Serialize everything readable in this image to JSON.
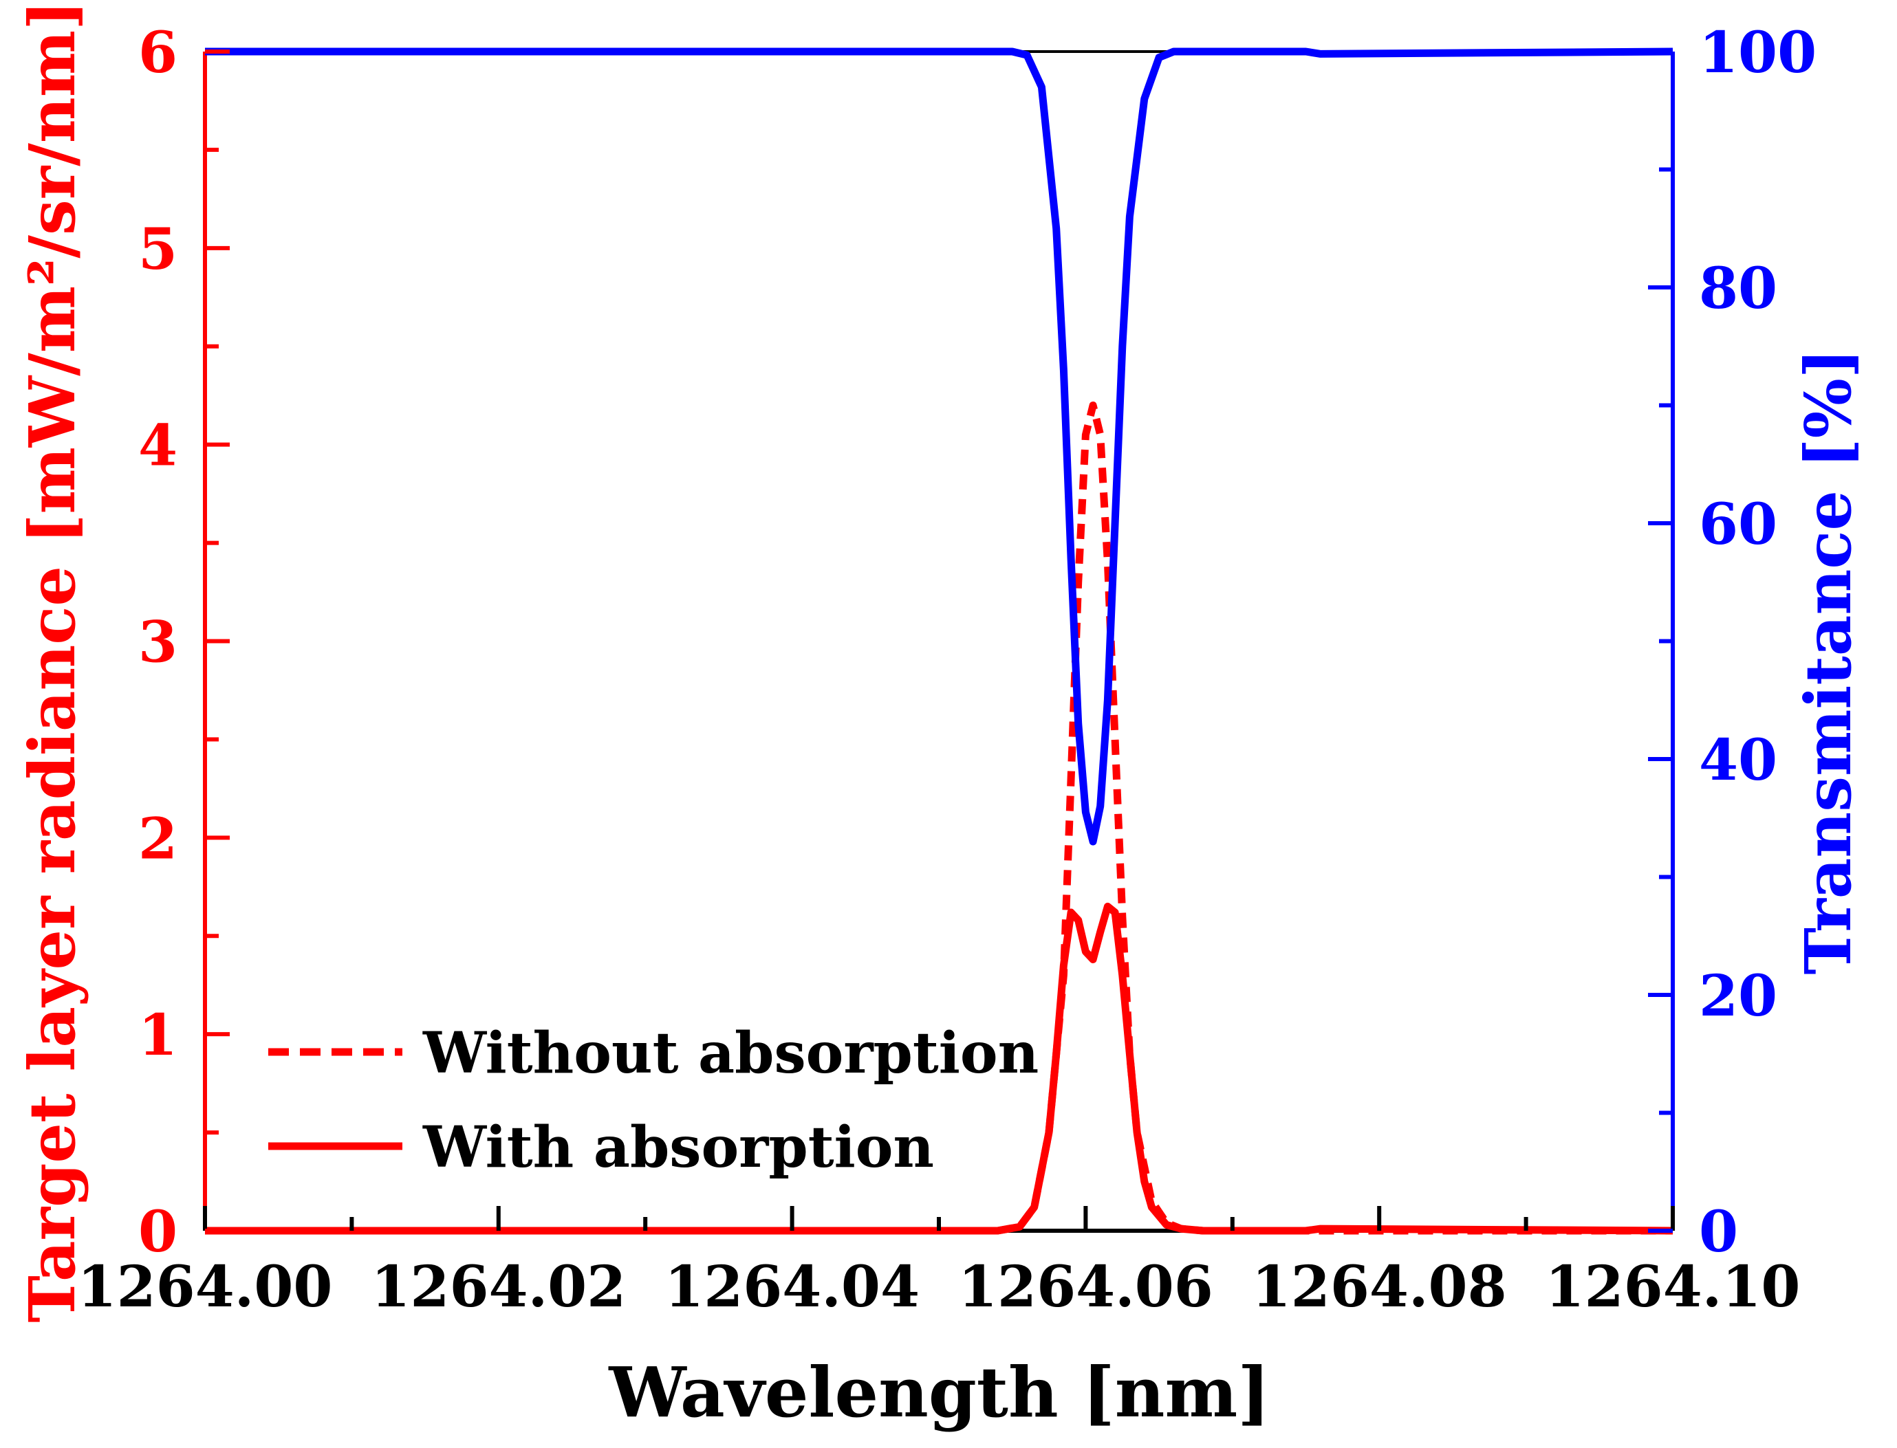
{
  "chart_data": {
    "type": "line",
    "title": "",
    "xlabel": "Wavelength [nm]",
    "ylabel_left": "Target layer radiance [mW/m²/sr/nm]",
    "ylabel_right": "Transmitance [%]",
    "xlim": [
      1264.0,
      1264.1
    ],
    "ylim_left": [
      0,
      6
    ],
    "ylim_right": [
      0,
      100
    ],
    "x_ticks": [
      "1264.00",
      "1264.02",
      "1264.04",
      "1264.06",
      "1264.08",
      "1264.10"
    ],
    "y_left_ticks": [
      "0",
      "1",
      "2",
      "3",
      "4",
      "5",
      "6"
    ],
    "y_right_ticks": [
      "0",
      "20",
      "40",
      "60",
      "80",
      "100"
    ],
    "grid": false,
    "legend_position": "bottom-left",
    "colors": {
      "left_axis": "#ff0000",
      "right_axis": "#0000ff",
      "x_axis": "#000000"
    },
    "series": [
      {
        "name": "Without absorption",
        "axis": "left",
        "style": "dashed",
        "color": "#ff0000",
        "x": [
          1264.0,
          1264.054,
          1264.0555,
          1264.0565,
          1264.0575,
          1264.0585,
          1264.059,
          1264.0595,
          1264.06,
          1264.0605,
          1264.061,
          1264.0615,
          1264.062,
          1264.0625,
          1264.063,
          1264.0635,
          1264.0645,
          1264.0655,
          1264.0665,
          1264.068,
          1264.1
        ],
        "y": [
          0,
          0,
          0.02,
          0.12,
          0.5,
          1.3,
          2.3,
          3.3,
          4.05,
          4.2,
          4.05,
          3.4,
          2.5,
          1.6,
          0.9,
          0.5,
          0.15,
          0.04,
          0.01,
          0,
          0
        ]
      },
      {
        "name": "With absorption",
        "axis": "left",
        "style": "solid",
        "color": "#ff0000",
        "x": [
          1264.0,
          1264.054,
          1264.0555,
          1264.0565,
          1264.0575,
          1264.058,
          1264.0585,
          1264.059,
          1264.0595,
          1264.06,
          1264.0605,
          1264.061,
          1264.0615,
          1264.062,
          1264.0625,
          1264.063,
          1264.0635,
          1264.064,
          1264.0645,
          1264.0655,
          1264.0665,
          1264.068,
          1264.075,
          1264.076,
          1264.1
        ],
        "y": [
          0,
          0,
          0.02,
          0.12,
          0.5,
          0.9,
          1.35,
          1.62,
          1.58,
          1.42,
          1.38,
          1.52,
          1.65,
          1.62,
          1.3,
          0.9,
          0.5,
          0.25,
          0.12,
          0.03,
          0.01,
          0,
          0,
          0.01,
          0
        ]
      },
      {
        "name": "Transmitance",
        "axis": "right",
        "style": "solid",
        "color": "#0000ff",
        "x": [
          1264.0,
          1264.055,
          1264.056,
          1264.057,
          1264.058,
          1264.0585,
          1264.059,
          1264.0595,
          1264.06,
          1264.0605,
          1264.061,
          1264.0615,
          1264.062,
          1264.0625,
          1264.063,
          1264.064,
          1264.065,
          1264.066,
          1264.075,
          1264.076,
          1264.1
        ],
        "y": [
          100,
          100,
          99.7,
          97,
          85,
          73,
          57,
          43,
          35.5,
          33,
          36,
          45,
          60,
          75,
          86,
          96,
          99.5,
          100,
          100,
          99.8,
          100
        ]
      }
    ]
  }
}
